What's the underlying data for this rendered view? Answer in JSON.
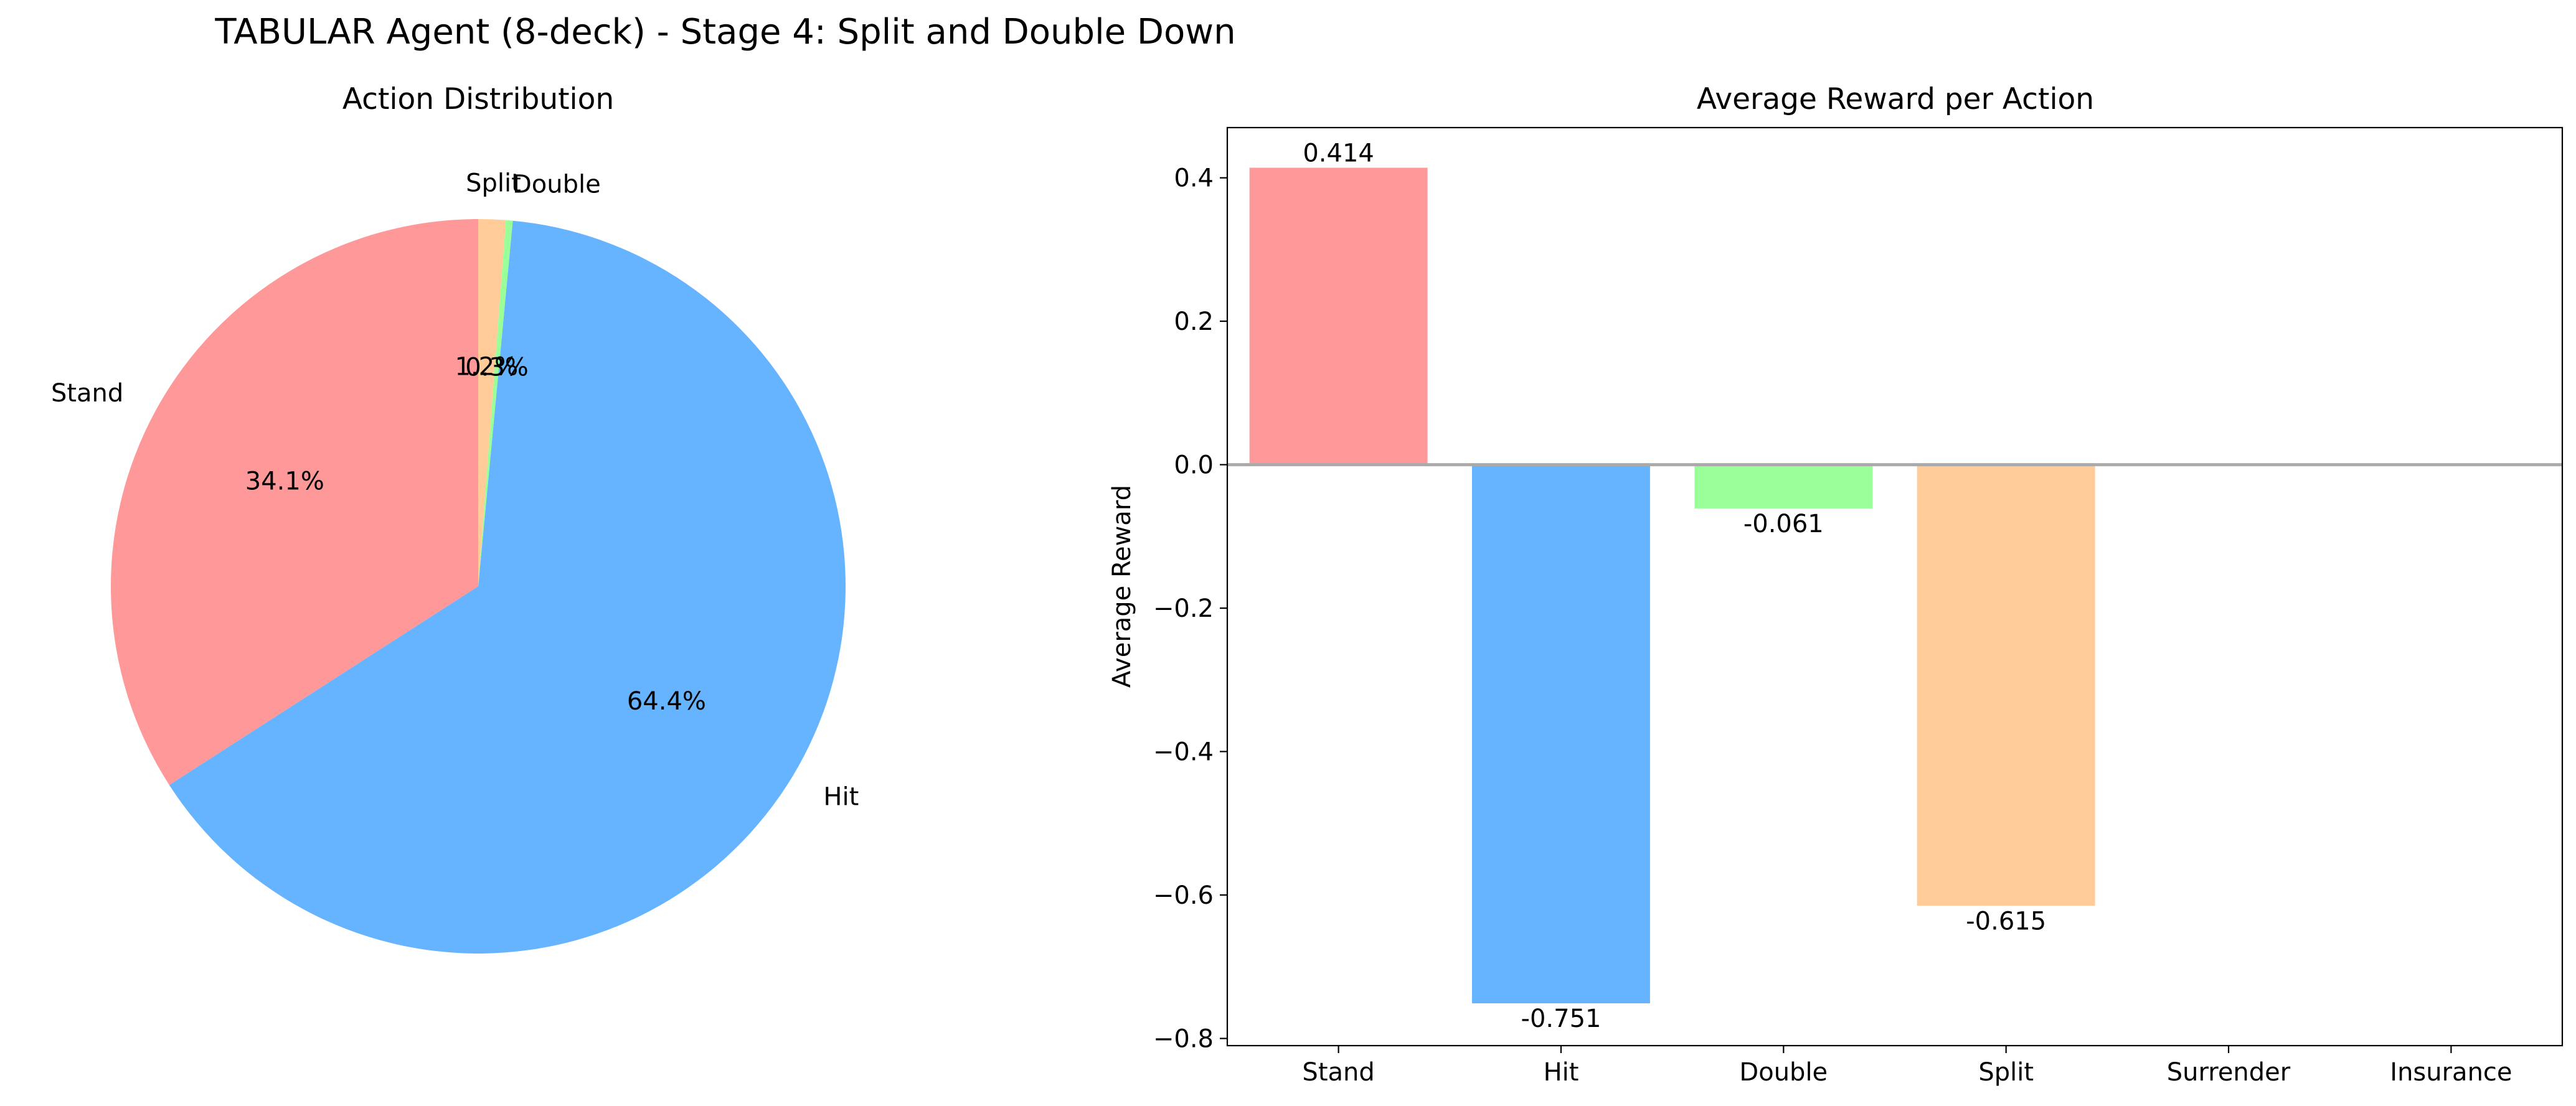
{
  "figure": {
    "title": "TABULAR Agent (8-deck) - Stage 4: Split and Double Down"
  },
  "colors": {
    "stand": "#ff9999",
    "hit": "#66b3ff",
    "double": "#99ff99",
    "split": "#ffcc99",
    "zero_line": "#aaaaaa"
  },
  "chart_data": [
    {
      "type": "pie",
      "title": "Action Distribution",
      "labels": [
        "Stand",
        "Hit",
        "Double",
        "Split"
      ],
      "values": [
        34.1,
        64.4,
        0.3,
        1.2
      ],
      "pct_labels": [
        "34.1%",
        "64.4%",
        "0.3%",
        "1.2%"
      ],
      "start_angle_deg": 90,
      "direction": "counterclockwise",
      "series_colors": [
        "#ff9999",
        "#66b3ff",
        "#99ff99",
        "#ffcc99"
      ]
    },
    {
      "type": "bar",
      "title": "Average Reward per Action",
      "xlabel": "",
      "ylabel": "Average Reward",
      "categories": [
        "Stand",
        "Hit",
        "Double",
        "Split",
        "Surrender",
        "Insurance"
      ],
      "values": [
        0.414,
        -0.751,
        -0.061,
        -0.615,
        null,
        null
      ],
      "value_labels": [
        "0.414",
        "-0.751",
        "-0.061",
        "-0.615",
        "",
        ""
      ],
      "series_colors": [
        "#ff9999",
        "#66b3ff",
        "#99ff99",
        "#ffcc99",
        "#ff99cc",
        "#c2c2f0"
      ],
      "ylim": [
        -0.81,
        0.47
      ],
      "yticks": [
        -0.8,
        -0.6,
        -0.4,
        -0.2,
        0.0,
        0.2,
        0.4
      ],
      "ytick_labels": [
        "−0.8",
        "−0.6",
        "−0.4",
        "−0.2",
        "0.0",
        "0.2",
        "0.4"
      ],
      "zero_line": true,
      "grid": false
    }
  ]
}
